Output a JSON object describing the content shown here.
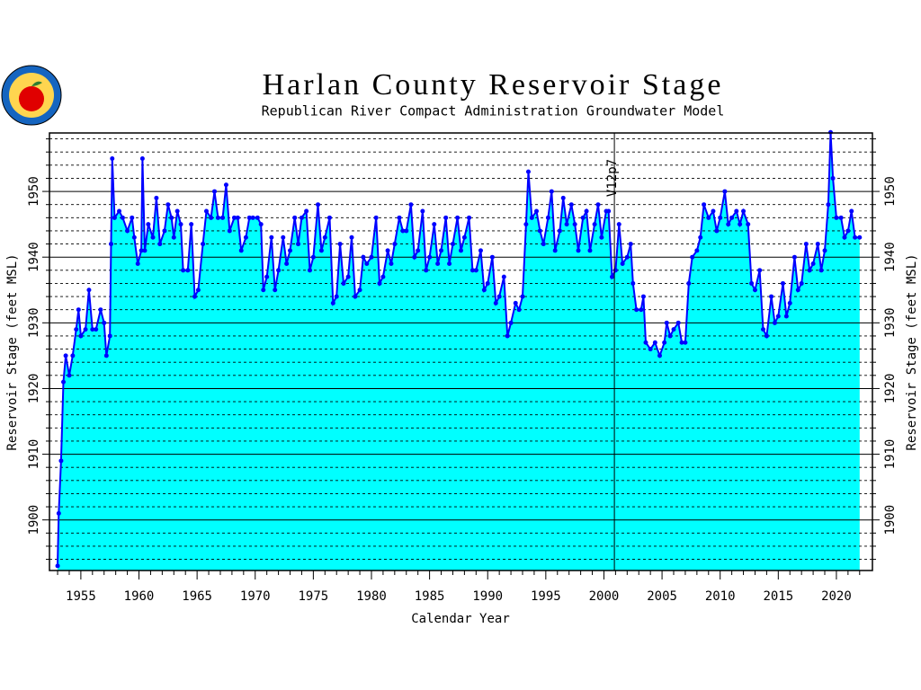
{
  "chart_data": {
    "type": "area",
    "title": "Harlan County Reservoir Stage",
    "subtitle": "Republican River Compact Administration Groundwater Model",
    "x_label": "Calendar Year",
    "y_label": "Reservoir Stage (feet MSL)",
    "annotation": {
      "text": "V12p7",
      "x": 2000.9
    },
    "xlim": [
      1952.3,
      2023.1
    ],
    "ylim": [
      1892.3,
      1958.9
    ],
    "xticks": [
      1955,
      1960,
      1965,
      1970,
      1975,
      1980,
      1985,
      1990,
      1995,
      2000,
      2005,
      2010,
      2015,
      2020
    ],
    "x_minor_ticks": [
      1953,
      1954,
      1956,
      1957,
      1958,
      1959,
      1961,
      1962,
      1963,
      1964,
      1966,
      1967,
      1968,
      1969,
      1971,
      1972,
      1973,
      1974,
      1976,
      1977,
      1978,
      1979,
      1981,
      1982,
      1983,
      1984,
      1986,
      1987,
      1988,
      1989,
      1991,
      1992,
      1993,
      1994,
      1996,
      1997,
      1998,
      1999,
      2001,
      2002,
      2003,
      2004,
      2006,
      2007,
      2008,
      2009,
      2011,
      2012,
      2013,
      2014,
      2016,
      2017,
      2018,
      2019,
      2021,
      2022
    ],
    "yticks": [
      1900,
      1910,
      1920,
      1930,
      1940,
      1950
    ],
    "y_minor_ticks": [
      1894,
      1896,
      1898,
      1902,
      1904,
      1906,
      1908,
      1912,
      1914,
      1916,
      1918,
      1922,
      1924,
      1926,
      1928,
      1932,
      1934,
      1936,
      1938,
      1942,
      1944,
      1946,
      1948,
      1952,
      1954,
      1956,
      1958
    ],
    "grid": true,
    "x": [
      1953.0,
      1953.1,
      1953.3,
      1953.5,
      1953.7,
      1954.0,
      1954.3,
      1954.6,
      1954.8,
      1955.0,
      1955.4,
      1955.7,
      1956.0,
      1956.3,
      1956.7,
      1957.0,
      1957.2,
      1957.5,
      1957.6,
      1957.7,
      1957.9,
      1958.3,
      1958.6,
      1959.0,
      1959.4,
      1959.6,
      1959.9,
      1960.2,
      1960.3,
      1960.5,
      1960.8,
      1961.2,
      1961.5,
      1961.8,
      1962.2,
      1962.5,
      1962.8,
      1963.0,
      1963.3,
      1963.6,
      1963.8,
      1964.2,
      1964.5,
      1964.8,
      1965.1,
      1965.5,
      1965.8,
      1966.2,
      1966.5,
      1966.8,
      1967.2,
      1967.5,
      1967.8,
      1968.2,
      1968.5,
      1968.8,
      1969.2,
      1969.5,
      1969.8,
      1970.2,
      1970.5,
      1970.7,
      1971.0,
      1971.4,
      1971.7,
      1972.0,
      1972.4,
      1972.7,
      1973.0,
      1973.4,
      1973.7,
      1974.0,
      1974.4,
      1974.7,
      1975.0,
      1975.4,
      1975.7,
      1976.0,
      1976.4,
      1976.7,
      1977.0,
      1977.3,
      1977.6,
      1978.0,
      1978.3,
      1978.6,
      1979.0,
      1979.3,
      1979.6,
      1980.0,
      1980.4,
      1980.7,
      1981.0,
      1981.4,
      1981.7,
      1982.0,
      1982.4,
      1982.7,
      1983.0,
      1983.4,
      1983.7,
      1984.0,
      1984.4,
      1984.7,
      1985.0,
      1985.4,
      1985.7,
      1986.0,
      1986.4,
      1986.7,
      1987.0,
      1987.4,
      1987.7,
      1988.0,
      1988.4,
      1988.7,
      1989.0,
      1989.4,
      1989.7,
      1990.0,
      1990.4,
      1990.7,
      1991.0,
      1991.4,
      1991.7,
      1992.0,
      1992.4,
      1992.7,
      1993.0,
      1993.3,
      1993.5,
      1993.8,
      1994.2,
      1994.5,
      1994.8,
      1995.2,
      1995.5,
      1995.8,
      1996.2,
      1996.5,
      1996.8,
      1997.2,
      1997.5,
      1997.8,
      1998.2,
      1998.5,
      1998.8,
      1999.2,
      1999.5,
      1999.8,
      2000.2,
      2000.4,
      2000.7,
      2001.0,
      2001.3,
      2001.6,
      2002.0,
      2002.3,
      2002.5,
      2002.8,
      2003.2,
      2003.4,
      2003.6,
      2004.0,
      2004.4,
      2004.8,
      2005.2,
      2005.4,
      2005.7,
      2006.0,
      2006.4,
      2006.7,
      2007.0,
      2007.3,
      2007.6,
      2008.0,
      2008.3,
      2008.6,
      2009.0,
      2009.4,
      2009.7,
      2010.0,
      2010.4,
      2010.7,
      2011.0,
      2011.4,
      2011.7,
      2012.0,
      2012.4,
      2012.7,
      2013.0,
      2013.4,
      2013.7,
      2014.0,
      2014.4,
      2014.7,
      2015.0,
      2015.4,
      2015.7,
      2016.0,
      2016.4,
      2016.7,
      2017.0,
      2017.4,
      2017.7,
      2018.0,
      2018.4,
      2018.7,
      2019.0,
      2019.3,
      2019.5,
      2019.7,
      2020.0,
      2020.4,
      2020.7,
      2021.0,
      2021.3,
      2021.6,
      2022.0
    ],
    "series": [
      {
        "color": "#0000ff",
        "fill": "#00ffff",
        "values": [
          1893,
          1901,
          1909,
          1921,
          1925,
          1922,
          1925,
          1929,
          1932,
          1928,
          1929,
          1935,
          1929,
          1929,
          1932,
          1930,
          1925,
          1928,
          1942,
          1955,
          1946,
          1947,
          1946,
          1944,
          1946,
          1943,
          1939,
          1941,
          1955,
          1941,
          1945,
          1943,
          1949,
          1942,
          1944,
          1948,
          1946,
          1943,
          1947,
          1945,
          1938,
          1938,
          1945,
          1934,
          1935,
          1942,
          1947,
          1946,
          1950,
          1946,
          1946,
          1951,
          1944,
          1946,
          1946,
          1941,
          1943,
          1946,
          1946,
          1946,
          1945,
          1935,
          1937,
          1943,
          1935,
          1938,
          1943,
          1939,
          1941,
          1946,
          1942,
          1946,
          1947,
          1938,
          1940,
          1948,
          1941,
          1943,
          1946,
          1933,
          1934,
          1942,
          1936,
          1937,
          1943,
          1934,
          1935,
          1940,
          1939,
          1940,
          1946,
          1936,
          1937,
          1941,
          1939,
          1942,
          1946,
          1944,
          1944,
          1948,
          1940,
          1941,
          1947,
          1938,
          1940,
          1945,
          1939,
          1941,
          1946,
          1939,
          1942,
          1946,
          1941,
          1943,
          1946,
          1938,
          1938,
          1941,
          1935,
          1936,
          1940,
          1933,
          1934,
          1937,
          1928,
          1930,
          1933,
          1932,
          1934,
          1945,
          1953,
          1946,
          1947,
          1944,
          1942,
          1946,
          1950,
          1941,
          1944,
          1949,
          1945,
          1948,
          1945,
          1941,
          1946,
          1947,
          1941,
          1945,
          1948,
          1943,
          1947,
          1947,
          1937,
          1938,
          1945,
          1939,
          1940,
          1942,
          1936,
          1932,
          1932,
          1934,
          1927,
          1926,
          1927,
          1925,
          1927,
          1930,
          1928,
          1929,
          1930,
          1927,
          1927,
          1936,
          1940,
          1941,
          1943,
          1948,
          1946,
          1947,
          1944,
          1946,
          1950,
          1945,
          1946,
          1947,
          1945,
          1947,
          1945,
          1936,
          1935,
          1938,
          1929,
          1928,
          1934,
          1930,
          1931,
          1936,
          1931,
          1933,
          1940,
          1935,
          1936,
          1942,
          1938,
          1939,
          1942,
          1938,
          1941,
          1948,
          1959,
          1952,
          1946,
          1946,
          1943,
          1944,
          1947,
          1943,
          1943
        ]
      }
    ]
  }
}
